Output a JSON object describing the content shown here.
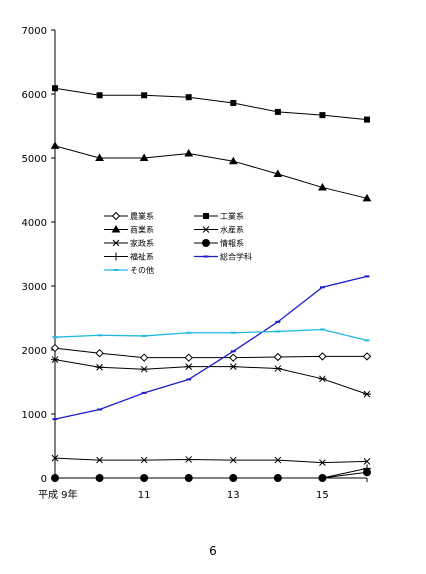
{
  "page_number": "6",
  "chart_data": {
    "type": "line",
    "xlabel": "",
    "ylabel": "",
    "title": "",
    "x": [
      9,
      10,
      11,
      12,
      13,
      14,
      15,
      16
    ],
    "x_tick_labels": [
      {
        "x": 9,
        "label": "平成 9年"
      },
      {
        "x": 11,
        "label": "11"
      },
      {
        "x": 13,
        "label": "13"
      },
      {
        "x": 15,
        "label": "15"
      }
    ],
    "ylim": [
      0,
      7000
    ],
    "yticks": [
      0,
      1000,
      2000,
      3000,
      4000,
      5000,
      6000,
      7000
    ],
    "grid": false,
    "legend_placement": "center-left",
    "series": [
      {
        "name": "農業系",
        "color": "#000000",
        "marker": "diamond",
        "values": [
          2030,
          1950,
          1880,
          1880,
          1880,
          1890,
          1900,
          1900
        ]
      },
      {
        "name": "工業系",
        "color": "#000000",
        "marker": "square",
        "values": [
          6090,
          5980,
          5980,
          5950,
          5860,
          5720,
          5670,
          5600
        ]
      },
      {
        "name": "商業系",
        "color": "#000000",
        "marker": "triangle",
        "values": [
          5190,
          5000,
          5000,
          5070,
          4950,
          4750,
          4540,
          4370
        ]
      },
      {
        "name": "水産系",
        "color": "#000000",
        "marker": "x",
        "values": [
          310,
          280,
          280,
          290,
          280,
          280,
          240,
          260
        ]
      },
      {
        "name": "家政系",
        "color": "#000000",
        "marker": "asterisk",
        "values": [
          1850,
          1730,
          1700,
          1740,
          1740,
          1710,
          1550,
          1310
        ]
      },
      {
        "name": "情報系",
        "color": "#000000",
        "marker": "circle",
        "values": [
          0,
          0,
          0,
          0,
          0,
          0,
          0,
          90
        ]
      },
      {
        "name": "福祉系",
        "color": "#000000",
        "marker": "plus",
        "values": [
          0,
          0,
          0,
          0,
          0,
          0,
          0,
          150
        ]
      },
      {
        "name": "総合学科",
        "color": "#1c1cc8",
        "marker": "dash",
        "values": [
          920,
          1070,
          1330,
          1540,
          1980,
          2440,
          2980,
          3150
        ]
      },
      {
        "name": "その他",
        "color": "#22b8e0",
        "marker": "dash",
        "values": [
          2200,
          2230,
          2220,
          2270,
          2270,
          2290,
          2320,
          2150
        ]
      }
    ]
  }
}
